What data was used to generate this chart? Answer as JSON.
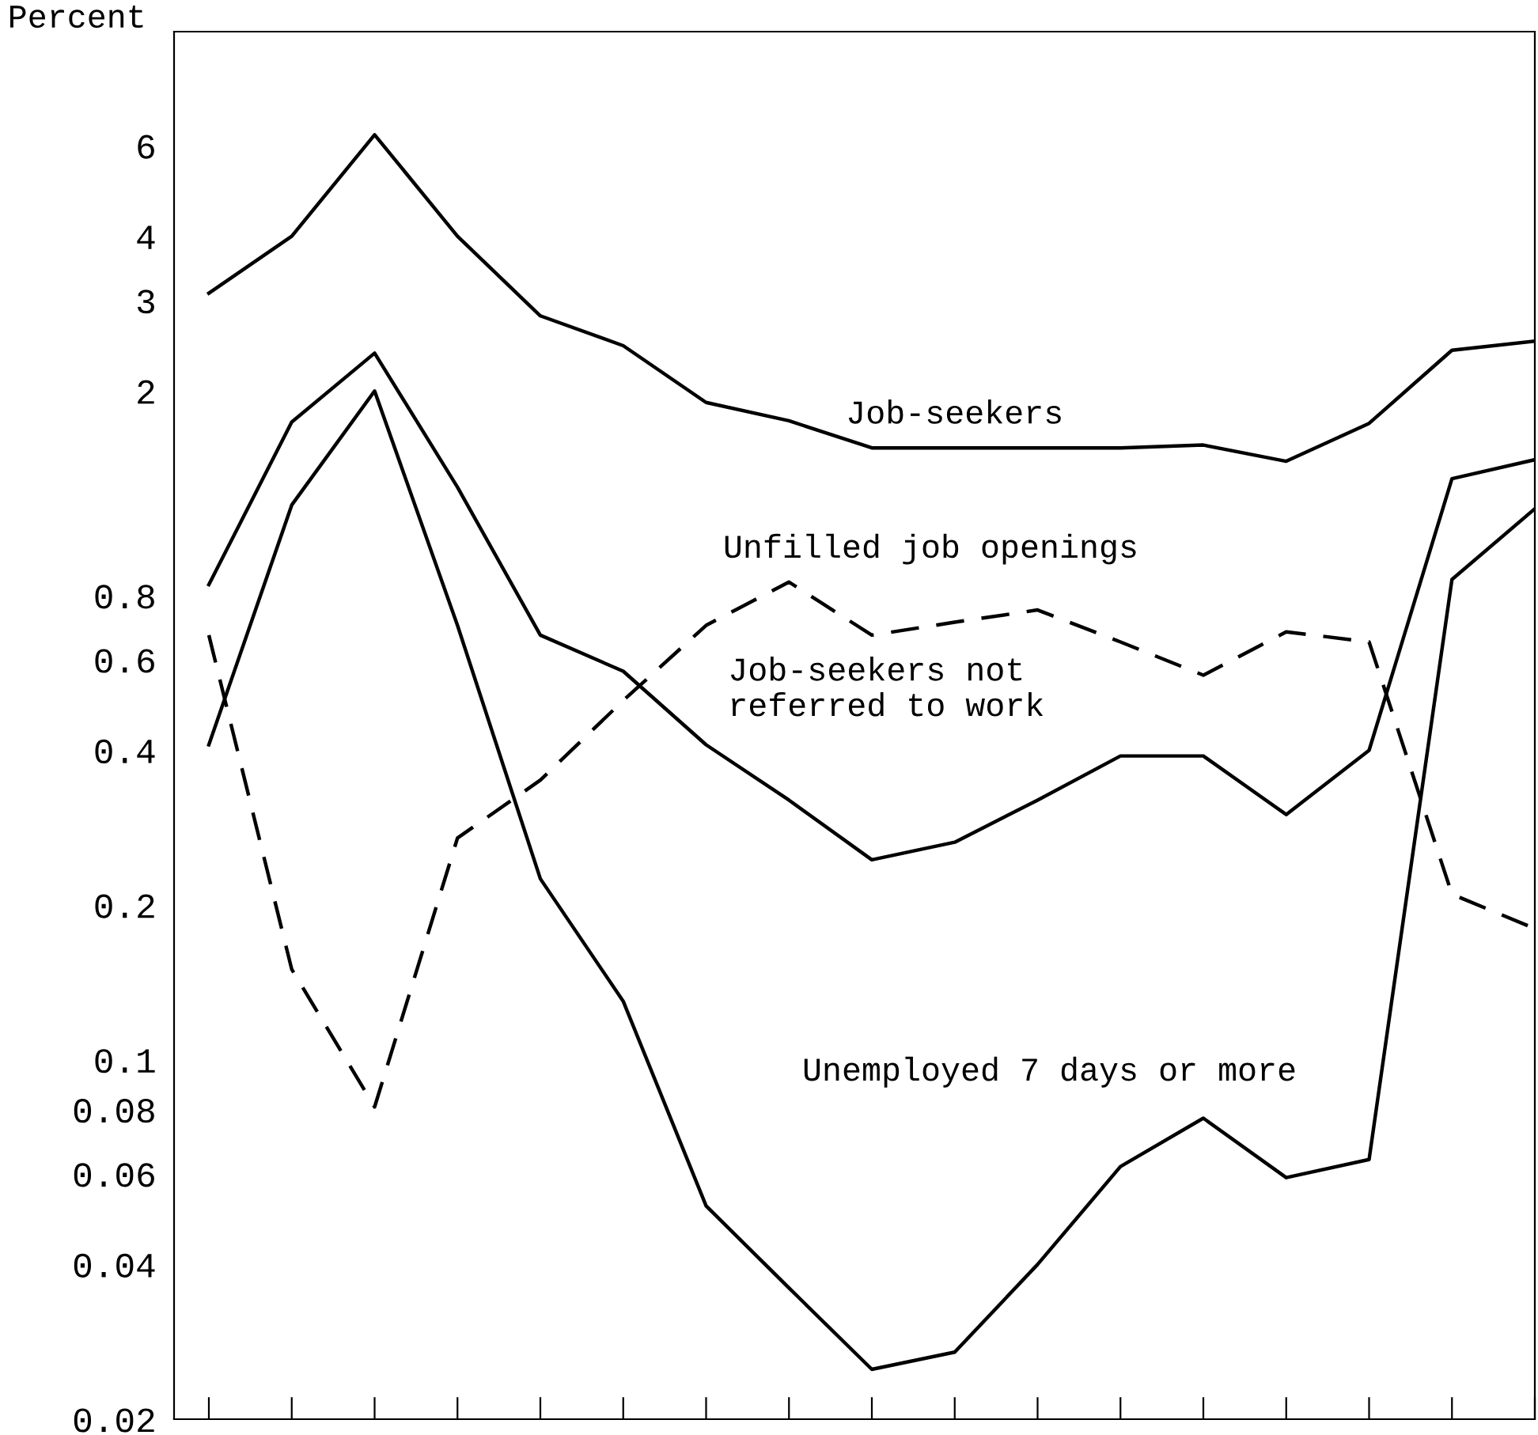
{
  "chart_data": {
    "type": "line",
    "ylabel": "Percent",
    "categories": [
      null,
      null,
      null,
      null,
      null,
      null,
      null,
      null,
      null,
      null,
      null,
      null,
      null,
      null,
      null,
      null,
      null
    ],
    "series": [
      {
        "name": "Job-seekers",
        "color": "#000000",
        "line_style": "solid",
        "values": [
          3.1,
          4.0,
          6.3,
          4.0,
          2.8,
          2.45,
          1.9,
          1.75,
          1.55,
          1.55,
          1.55,
          1.55,
          1.57,
          1.46,
          1.73,
          2.4,
          2.5
        ]
      },
      {
        "name": "Unfilled job openings",
        "color": "#000000",
        "line_style": "dashed",
        "values": [
          0.67,
          0.15,
          0.081,
          0.27,
          0.35,
          0.5,
          0.7,
          0.85,
          0.67,
          0.71,
          0.75,
          0.65,
          0.56,
          0.68,
          0.65,
          0.21,
          0.18
        ]
      },
      {
        "name": "Job-seekers not\nreferred to work",
        "color": "#000000",
        "line_style": "solid",
        "values": [
          0.84,
          1.74,
          2.37,
          1.3,
          0.67,
          0.57,
          0.41,
          0.32,
          0.245,
          0.265,
          0.32,
          0.39,
          0.39,
          0.3,
          0.4,
          1.35,
          1.47
        ]
      },
      {
        "name": "Unemployed 7 days or more",
        "color": "#000000",
        "line_style": "solid",
        "values": [
          0.41,
          1.2,
          2.0,
          0.7,
          0.225,
          0.13,
          0.052,
          0.036,
          0.025,
          0.027,
          0.04,
          0.062,
          0.077,
          0.059,
          0.064,
          0.86,
          1.18
        ]
      }
    ],
    "log": "y",
    "ylim": [
      0.02,
      10
    ],
    "yticks": [
      0.02,
      0.04,
      0.06,
      0.08,
      0.1,
      0.2,
      0.4,
      0.6,
      0.8,
      2,
      3,
      4,
      6
    ],
    "tick_labels": "y",
    "grid": false,
    "legend": false,
    "marker": "none"
  }
}
